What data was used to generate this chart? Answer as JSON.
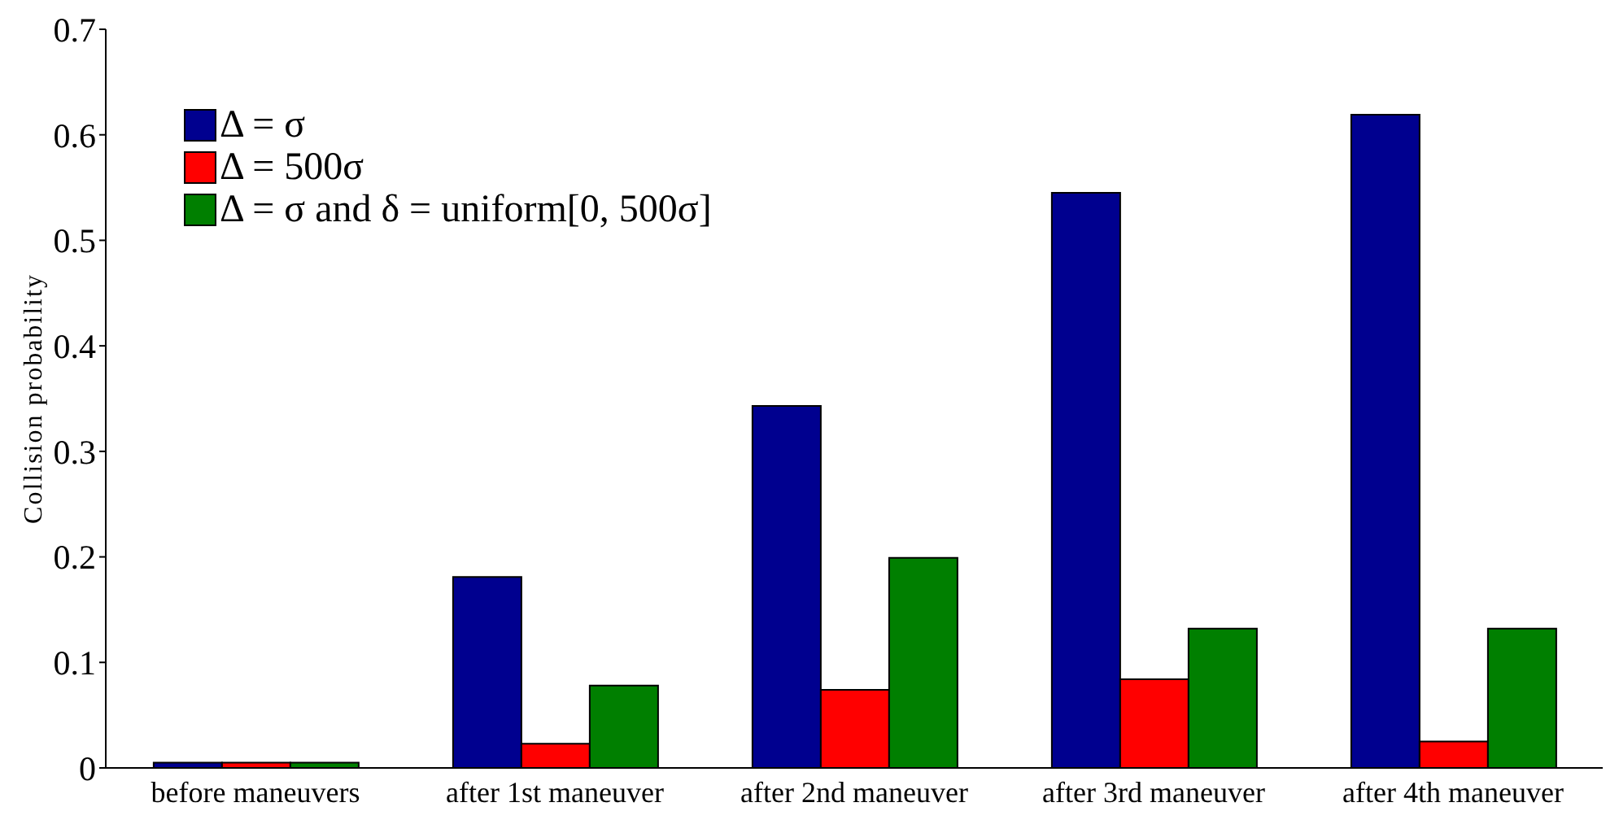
{
  "chart_data": {
    "type": "bar",
    "ylabel": "Collision probability",
    "categories": [
      "before maneuvers",
      "after 1st maneuver",
      "after 2nd maneuver",
      "after 3rd maneuver",
      "after 4th maneuver"
    ],
    "series": [
      {
        "name": "Δ = σ",
        "color": "#00008f",
        "values": [
          0.005,
          0.181,
          0.343,
          0.545,
          0.619
        ]
      },
      {
        "name": "Δ = 500σ",
        "color": "#ff0000",
        "values": [
          0.005,
          0.023,
          0.074,
          0.084,
          0.025
        ]
      },
      {
        "name": "Δ = σ and δ = uniform[0, 500σ]",
        "color": "#007f00",
        "values": [
          0.005,
          0.078,
          0.199,
          0.132,
          0.132
        ]
      }
    ],
    "ylim": [
      0,
      0.7
    ],
    "yticks": [
      0,
      0.1,
      0.2,
      0.3,
      0.4,
      0.5,
      0.6,
      0.7
    ],
    "grid": false,
    "legend": "top left"
  }
}
